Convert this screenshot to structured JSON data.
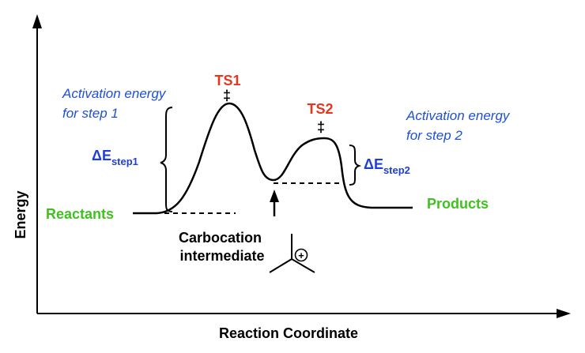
{
  "axes": {
    "y_label": "Energy",
    "x_label": "Reaction Coordinate"
  },
  "transition_states": {
    "ts1": {
      "label": "TS1",
      "mark": "‡"
    },
    "ts2": {
      "label": "TS2",
      "mark": "‡"
    }
  },
  "annotations": {
    "activation_step1": [
      "Activation energy",
      "for step 1"
    ],
    "activation_step2": [
      "Activation energy",
      "for step 2"
    ],
    "delta_e_step1": {
      "delta": "ΔE",
      "subscript": "step1"
    },
    "delta_e_step2": {
      "delta": "ΔE",
      "subscript": "step2"
    }
  },
  "species": {
    "reactants": "Reactants",
    "products": "Products",
    "intermediate": [
      "Carbocation",
      "intermediate"
    ],
    "charge_symbol": "+"
  },
  "colors": {
    "ts_label": "#e8361e",
    "species_label": "#3fc21f",
    "activation_text": "#1f4fd6",
    "delta_text": "#1f3fd6",
    "line": "#000000"
  }
}
